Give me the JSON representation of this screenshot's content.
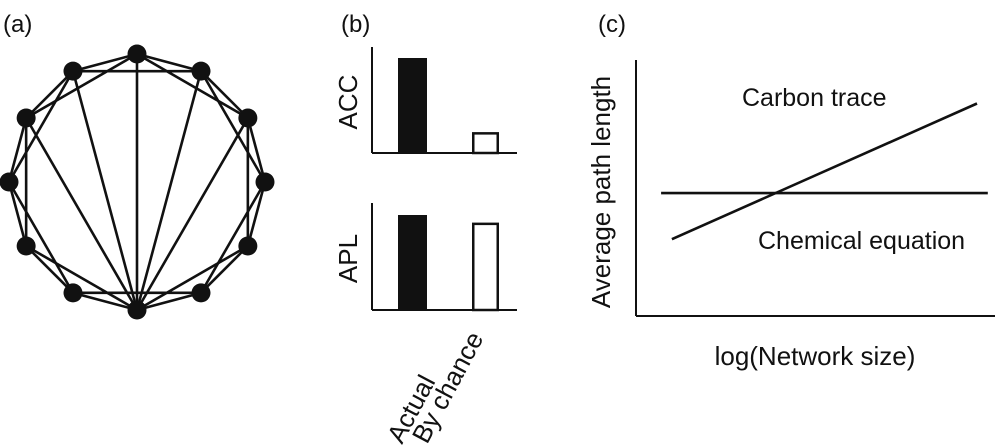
{
  "panel_a": {
    "label": "(a)",
    "node_count": 12,
    "node_color": "#111111"
  },
  "panel_b": {
    "label": "(b)",
    "categories": [
      "Actual",
      "By chance"
    ],
    "charts": [
      {
        "ylabel": "ACC",
        "values": [
          1.0,
          0.22
        ],
        "ymax": 1.0
      },
      {
        "ylabel": "APL",
        "values": [
          1.0,
          0.92
        ],
        "ymax": 1.0
      }
    ],
    "fill_actual": "#111111",
    "fill_chance": "#ffffff"
  },
  "chart_data": {
    "type": "line",
    "label": "(c)",
    "xlabel": "log(Network size)",
    "ylabel": "Average path length",
    "series": [
      {
        "name": "Carbon trace",
        "x": [
          0.1,
          0.95
        ],
        "y": [
          0.3,
          0.83
        ]
      },
      {
        "name": "Chemical equation",
        "x": [
          0.07,
          0.98
        ],
        "y": [
          0.48,
          0.48
        ]
      }
    ],
    "xlim": [
      0,
      1
    ],
    "ylim": [
      0,
      1
    ]
  }
}
